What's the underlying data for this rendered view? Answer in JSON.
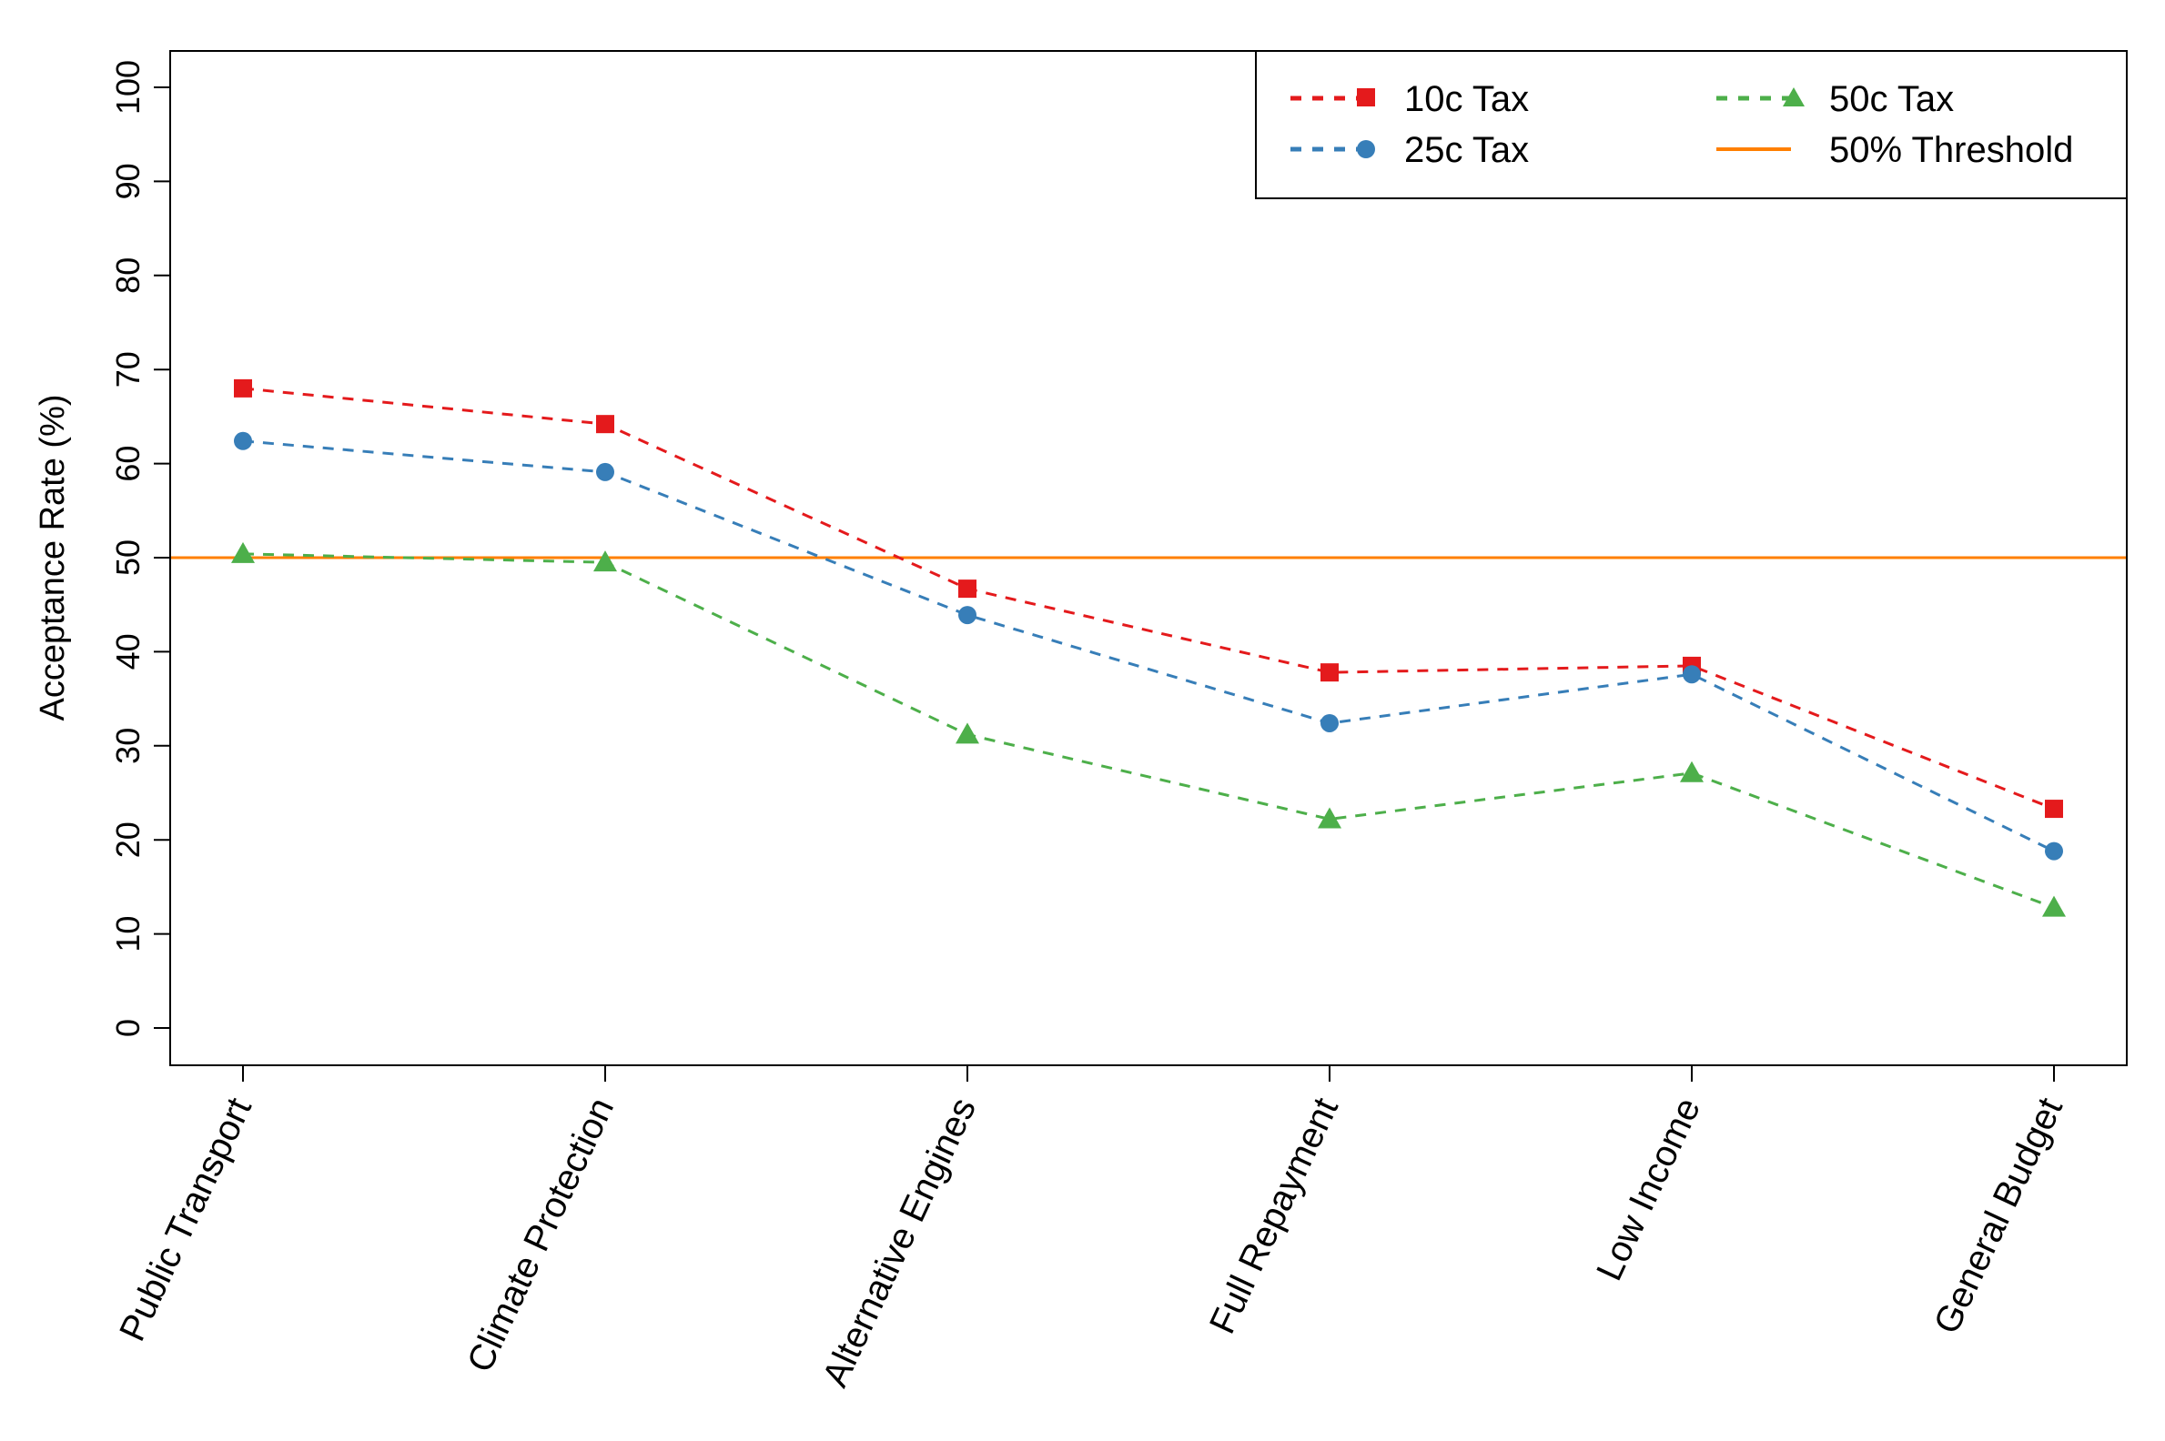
{
  "chart_data": {
    "type": "line",
    "title": "",
    "xlabel": "",
    "ylabel": "Acceptance Rate (%)",
    "ylim": [
      0,
      100
    ],
    "yticks": [
      0,
      10,
      20,
      30,
      40,
      50,
      60,
      70,
      80,
      90,
      100
    ],
    "categories": [
      "Public Transport",
      "Climate Protection",
      "Alternative Engines",
      "Full Repayment",
      "Low Income",
      "General Budget"
    ],
    "series": [
      {
        "name": "10c Tax",
        "color": "#e41a1c",
        "marker": "square",
        "values": [
          68,
          64.2,
          46.7,
          37.8,
          38.5,
          23.3
        ]
      },
      {
        "name": "25c Tax",
        "color": "#377eb8",
        "marker": "circle",
        "values": [
          62.4,
          59.1,
          43.9,
          32.4,
          37.6,
          18.8
        ]
      },
      {
        "name": "50c Tax",
        "color": "#4daf4a",
        "marker": "triangle",
        "values": [
          50.4,
          49.5,
          31.2,
          22.2,
          27.1,
          12.8
        ]
      }
    ],
    "reference_line": {
      "name": "50% Threshold",
      "value": 50,
      "color": "#ff7f00"
    },
    "legend": {
      "position": "top-right"
    }
  }
}
